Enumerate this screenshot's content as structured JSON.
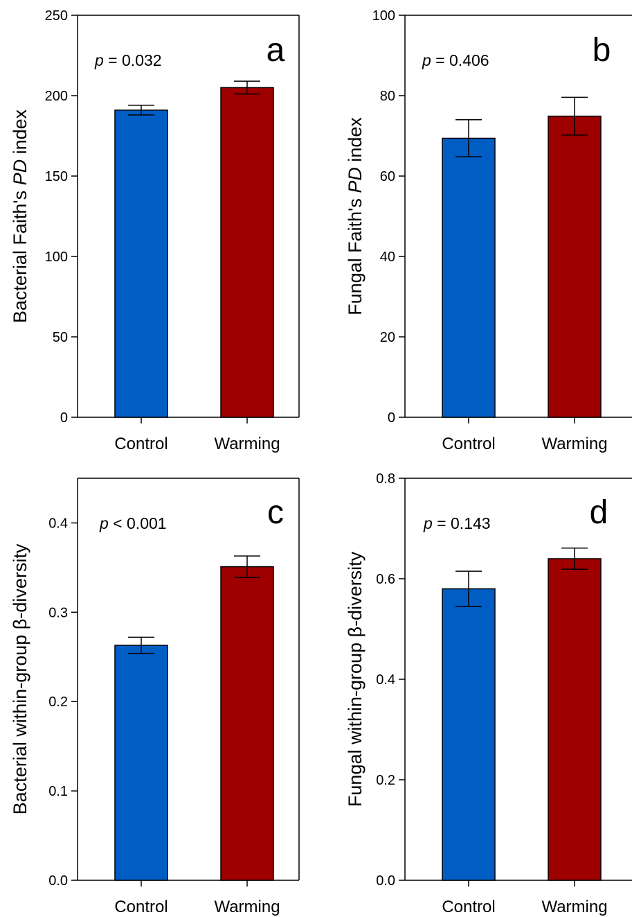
{
  "colors": {
    "control": "#005dc4",
    "warming": "#9e0000",
    "axis": "#000000"
  },
  "chart_data": [
    {
      "type": "bar",
      "panel_letter": "a",
      "p_prefix": "p",
      "p_value": "= 0.032",
      "categories": [
        "Control",
        "Warming"
      ],
      "series": [
        {
          "values": [
            191,
            205
          ],
          "errors": [
            3,
            4
          ]
        }
      ],
      "ylabel_parts": [
        "Bacterial Faith's ",
        "PD",
        " index"
      ],
      "ylim": [
        0,
        250
      ],
      "yticks": [
        0,
        50,
        100,
        150,
        200,
        250
      ],
      "ytick_labels": [
        "0",
        "50",
        "100",
        "150",
        "200",
        "250"
      ]
    },
    {
      "type": "bar",
      "panel_letter": "b",
      "p_prefix": "p",
      "p_value": "= 0.406",
      "categories": [
        "Control",
        "Warming"
      ],
      "series": [
        {
          "values": [
            69.4,
            74.9
          ],
          "errors": [
            4.6,
            4.7
          ]
        }
      ],
      "ylabel_parts": [
        "Fungal Faith's ",
        "PD",
        " index"
      ],
      "ylim": [
        0,
        100
      ],
      "yticks": [
        0,
        20,
        40,
        60,
        80,
        100
      ],
      "ytick_labels": [
        "0",
        "20",
        "40",
        "60",
        "80",
        "100"
      ]
    },
    {
      "type": "bar",
      "panel_letter": "c",
      "p_prefix": "p",
      "p_value": "< 0.001",
      "categories": [
        "Control",
        "Warming"
      ],
      "series": [
        {
          "values": [
            0.263,
            0.351
          ],
          "errors": [
            0.009,
            0.012
          ]
        }
      ],
      "ylabel_parts": [
        "Bacterial within-group β-diversity"
      ],
      "ylim": [
        0,
        0.45
      ],
      "yticks": [
        0,
        0.1,
        0.2,
        0.3,
        0.4
      ],
      "ytick_labels": [
        "0.0",
        "0.1",
        "0.2",
        "0.3",
        "0.4"
      ]
    },
    {
      "type": "bar",
      "panel_letter": "d",
      "p_prefix": "p",
      "p_value": "= 0.143",
      "categories": [
        "Control",
        "Warming"
      ],
      "series": [
        {
          "values": [
            0.58,
            0.64
          ],
          "errors": [
            0.035,
            0.021
          ]
        }
      ],
      "ylabel_parts": [
        "Fungal within-group β-diversity"
      ],
      "ylim": [
        0,
        0.8
      ],
      "yticks": [
        0,
        0.2,
        0.4,
        0.6,
        0.8
      ],
      "ytick_labels": [
        "0.0",
        "0.2",
        "0.4",
        "0.6",
        "0.8"
      ]
    }
  ]
}
